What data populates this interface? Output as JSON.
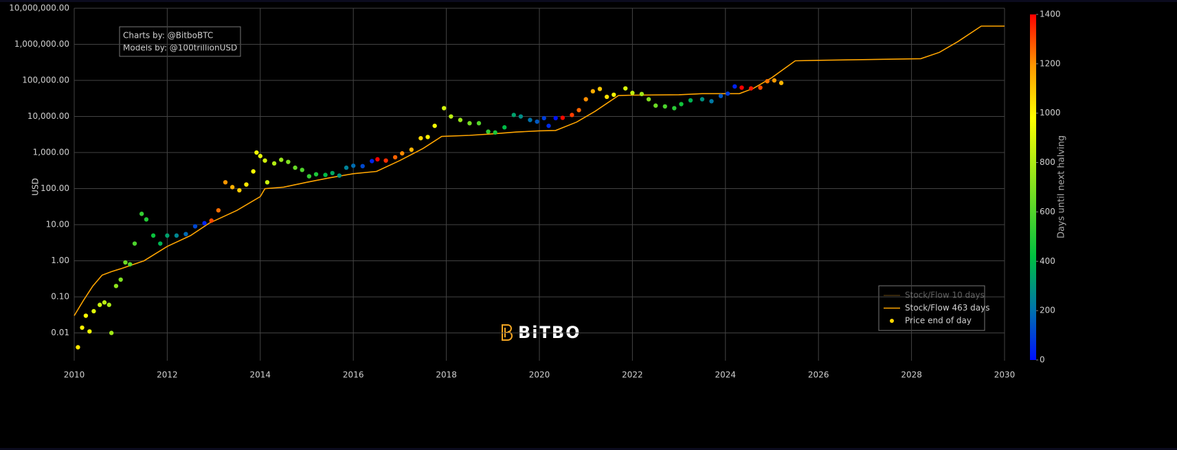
{
  "chart_data": {
    "type": "scatter",
    "annotation_lines": [
      "Charts by: @BitboBTC",
      "Models by: @100trillionUSD"
    ],
    "watermark": "BiTBO",
    "y_label": "USD",
    "log_y": true,
    "grid": true,
    "legend_position": "bottom-right",
    "xlim": [
      2010,
      2030
    ],
    "xticks": [
      2010,
      2012,
      2014,
      2016,
      2018,
      2020,
      2022,
      2024,
      2026,
      2028,
      2030
    ],
    "ylim": [
      0.0017,
      10000000
    ],
    "yticks": [
      {
        "value": 0.01,
        "label": "0.01"
      },
      {
        "value": 0.1,
        "label": "0.10"
      },
      {
        "value": 1,
        "label": "1.00"
      },
      {
        "value": 10,
        "label": "10.00"
      },
      {
        "value": 100,
        "label": "100.00"
      },
      {
        "value": 1000,
        "label": "1,000.00"
      },
      {
        "value": 10000,
        "label": "10,000.00"
      },
      {
        "value": 100000,
        "label": "100,000.00"
      },
      {
        "value": 1000000,
        "label": "1,000,000.00"
      },
      {
        "value": 10000000,
        "label": "10,000,000.00"
      }
    ],
    "colorbar": {
      "title": "Days until next halving",
      "lim": [
        0,
        1400
      ],
      "ticks": [
        0,
        200,
        400,
        600,
        800,
        1000,
        1200,
        1400
      ],
      "colorscale": [
        [
          0,
          "#0010ff"
        ],
        [
          0.14,
          "#0070b0"
        ],
        [
          0.3,
          "#00c040"
        ],
        [
          0.5,
          "#80e020"
        ],
        [
          0.7,
          "#ffff00"
        ],
        [
          0.85,
          "#ff9900"
        ],
        [
          1,
          "#ff0000"
        ]
      ]
    },
    "series": [
      {
        "name": "Stock/Flow 10 days",
        "kind": "line",
        "color": "#a07020",
        "visible": false
      },
      {
        "name": "Stock/Flow 463 days",
        "kind": "line",
        "color": "#ffa500",
        "x": [
          2010.0,
          2010.2,
          2010.4,
          2010.6,
          2010.8,
          2011.0,
          2011.5,
          2012.0,
          2012.5,
          2012.9,
          2013.5,
          2014.0,
          2014.1,
          2014.5,
          2015.0,
          2015.5,
          2016.0,
          2016.5,
          2017.0,
          2017.5,
          2017.9,
          2018.5,
          2019.0,
          2019.5,
          2020.0,
          2020.35,
          2020.8,
          2021.2,
          2021.7,
          2022.0,
          2023.0,
          2023.5,
          2024.3,
          2024.6,
          2025.0,
          2025.5,
          2026.0,
          2028.2,
          2028.6,
          2029.0,
          2029.5,
          2030.0
        ],
        "values": [
          0.03,
          0.08,
          0.2,
          0.4,
          0.5,
          0.6,
          1.0,
          2.5,
          5,
          11,
          25,
          60,
          100,
          110,
          150,
          200,
          260,
          300,
          600,
          1300,
          2800,
          3000,
          3300,
          3700,
          4000,
          4100,
          7000,
          14000,
          38000,
          39000,
          40000,
          43000,
          43000,
          60000,
          120000,
          350000,
          360000,
          400000,
          600000,
          1200000,
          3200000,
          3200000
        ]
      },
      {
        "name": "Price end of day",
        "kind": "points",
        "color": "#ffd700",
        "x": [
          2010.08,
          2010.17,
          2010.25,
          2010.33,
          2010.42,
          2010.55,
          2010.65,
          2010.75,
          2010.8,
          2010.9,
          2011.0,
          2011.1,
          2011.2,
          2011.3,
          2011.45,
          2011.55,
          2011.7,
          2011.85,
          2012.0,
          2012.2,
          2012.4,
          2012.6,
          2012.8,
          2012.95,
          2013.1,
          2013.25,
          2013.4,
          2013.55,
          2013.7,
          2013.85,
          2013.92,
          2014.0,
          2014.1,
          2014.15,
          2014.3,
          2014.45,
          2014.6,
          2014.75,
          2014.9,
          2015.05,
          2015.2,
          2015.4,
          2015.55,
          2015.7,
          2015.85,
          2016.0,
          2016.2,
          2016.4,
          2016.52,
          2016.7,
          2016.9,
          2017.05,
          2017.25,
          2017.45,
          2017.6,
          2017.75,
          2017.95,
          2018.1,
          2018.3,
          2018.5,
          2018.7,
          2018.9,
          2019.05,
          2019.25,
          2019.45,
          2019.6,
          2019.8,
          2019.95,
          2020.1,
          2020.2,
          2020.35,
          2020.5,
          2020.7,
          2020.85,
          2021.0,
          2021.15,
          2021.3,
          2021.45,
          2021.6,
          2021.85,
          2022.0,
          2022.2,
          2022.35,
          2022.5,
          2022.7,
          2022.9,
          2023.05,
          2023.25,
          2023.5,
          2023.7,
          2023.9,
          2024.05,
          2024.2,
          2024.35,
          2024.55,
          2024.75,
          2024.9,
          2025.05,
          2025.2
        ],
        "values": [
          0.004,
          0.014,
          0.03,
          0.011,
          0.04,
          0.06,
          0.07,
          0.06,
          0.01,
          0.2,
          0.3,
          0.9,
          0.8,
          3,
          20,
          14,
          5,
          3,
          5,
          5,
          5.5,
          9,
          11,
          13,
          25,
          150,
          110,
          90,
          130,
          300,
          1000,
          800,
          600,
          150,
          500,
          630,
          550,
          380,
          330,
          220,
          250,
          240,
          270,
          230,
          380,
          430,
          420,
          580,
          650,
          600,
          740,
          950,
          1200,
          2500,
          2700,
          5500,
          17000,
          10000,
          8000,
          6500,
          6500,
          3800,
          3600,
          5000,
          11000,
          10000,
          8000,
          7200,
          9000,
          5500,
          9000,
          9200,
          11000,
          15000,
          30000,
          50000,
          58000,
          35000,
          40000,
          60000,
          45000,
          42000,
          30000,
          20000,
          19000,
          17000,
          22000,
          28000,
          30000,
          26500,
          37000,
          43000,
          68000,
          63000,
          60000,
          63000,
          95000,
          100000,
          85000
        ],
        "color_values": [
          1030,
          1000,
          971,
          942,
          909,
          861,
          825,
          788,
          770,
          734,
          697,
          661,
          624,
          588,
          533,
          496,
          442,
          387,
          332,
          259,
          186,
          113,
          40,
          1303,
          1249,
          1194,
          1140,
          1085,
          1030,
          975,
          950,
          920,
          884,
          866,
          811,
          756,
          701,
          646,
          592,
          537,
          482,
          409,
          354,
          300,
          245,
          190,
          117,
          44,
          1400,
          1337,
          1264,
          1209,
          1136,
          1063,
          1008,
          953,
          880,
          825,
          752,
          679,
          606,
          533,
          478,
          405,
          332,
          278,
          205,
          150,
          95,
          58,
          4,
          1388,
          1315,
          1260,
          1205,
          1151,
          1096,
          1041,
          986,
          895,
          840,
          767,
          712,
          657,
          584,
          511,
          457,
          384,
          292,
          219,
          146,
          91,
          37,
          1400,
          1369,
          1296,
          1241,
          1187,
          1132
        ]
      }
    ]
  }
}
